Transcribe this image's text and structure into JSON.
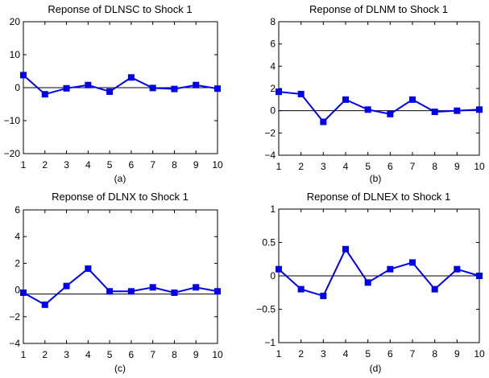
{
  "colors": {
    "series": "#0000ee",
    "axis": "#000000",
    "zero_line": "#000000",
    "background": "#ffffff"
  },
  "chart_data": [
    {
      "type": "line",
      "title": "Reponse of DLNSC to Shock 1",
      "caption": "(a)",
      "x": [
        1,
        2,
        3,
        4,
        5,
        6,
        7,
        8,
        9,
        10
      ],
      "x_ticks": [
        "1",
        "2",
        "3",
        "4",
        "5",
        "6",
        "7",
        "8",
        "9",
        "10"
      ],
      "xlim": [
        1,
        10
      ],
      "ylim": [
        -20,
        20
      ],
      "y_ticks": [
        20,
        10,
        0,
        -10,
        -20
      ],
      "y_tick_labels": [
        "20",
        "10",
        "0",
        "−10",
        "−20"
      ],
      "zero_line": 0,
      "marker": "square",
      "grid": false,
      "series": [
        {
          "values": [
            3.8,
            -2.0,
            -0.2,
            0.8,
            -1.2,
            3.1,
            -0.1,
            -0.4,
            0.8,
            -0.3
          ]
        }
      ]
    },
    {
      "type": "line",
      "title": "Reponse of DLNM to Shock 1",
      "caption": "(b)",
      "x": [
        1,
        2,
        3,
        4,
        5,
        6,
        7,
        8,
        9,
        10
      ],
      "x_ticks": [
        "1",
        "2",
        "3",
        "4",
        "5",
        "6",
        "7",
        "8",
        "9",
        "10"
      ],
      "xlim": [
        1,
        10
      ],
      "ylim": [
        -4,
        8
      ],
      "y_ticks": [
        8,
        6,
        4,
        2,
        0,
        -2,
        -4
      ],
      "y_tick_labels": [
        "8",
        "6",
        "4",
        "2",
        "0",
        "−2",
        "−4"
      ],
      "zero_line": 0,
      "marker": "square",
      "grid": false,
      "series": [
        {
          "values": [
            1.7,
            1.5,
            -1.0,
            1.0,
            0.1,
            -0.3,
            1.0,
            -0.1,
            0.0,
            0.1
          ]
        }
      ]
    },
    {
      "type": "line",
      "title": "Reponse of DLNX to Shock 1",
      "caption": "(c)",
      "x": [
        1,
        2,
        3,
        4,
        5,
        6,
        7,
        8,
        9,
        10
      ],
      "x_ticks": [
        "1",
        "2",
        "3",
        "4",
        "5",
        "6",
        "7",
        "8",
        "9",
        "10"
      ],
      "xlim": [
        1,
        10
      ],
      "ylim": [
        -4,
        6
      ],
      "y_ticks": [
        6,
        4,
        2,
        0,
        -2,
        -4
      ],
      "y_tick_labels": [
        "6",
        "4",
        "2",
        "0",
        "−2",
        "−4"
      ],
      "zero_line": -0.3,
      "marker": "square",
      "grid": false,
      "series": [
        {
          "values": [
            -0.2,
            -1.1,
            0.3,
            1.6,
            -0.1,
            -0.1,
            0.2,
            -0.2,
            0.2,
            -0.1
          ]
        }
      ]
    },
    {
      "type": "line",
      "title": "Reponse of DLNEX to Shock 1",
      "caption": "(d)",
      "x": [
        1,
        2,
        3,
        4,
        5,
        6,
        7,
        8,
        9,
        10
      ],
      "x_ticks": [
        "1",
        "2",
        "3",
        "4",
        "5",
        "6",
        "7",
        "8",
        "9",
        "10"
      ],
      "xlim": [
        1,
        10
      ],
      "ylim": [
        -1,
        1
      ],
      "y_ticks": [
        1,
        0.5,
        0,
        -0.5,
        -1
      ],
      "y_tick_labels": [
        "1",
        "0.5",
        "0",
        "−0.5",
        "−1"
      ],
      "zero_line": 0,
      "marker": "square",
      "grid": false,
      "series": [
        {
          "values": [
            0.1,
            -0.2,
            -0.3,
            0.4,
            -0.1,
            0.1,
            0.2,
            -0.2,
            0.1,
            0.0
          ]
        }
      ]
    }
  ]
}
